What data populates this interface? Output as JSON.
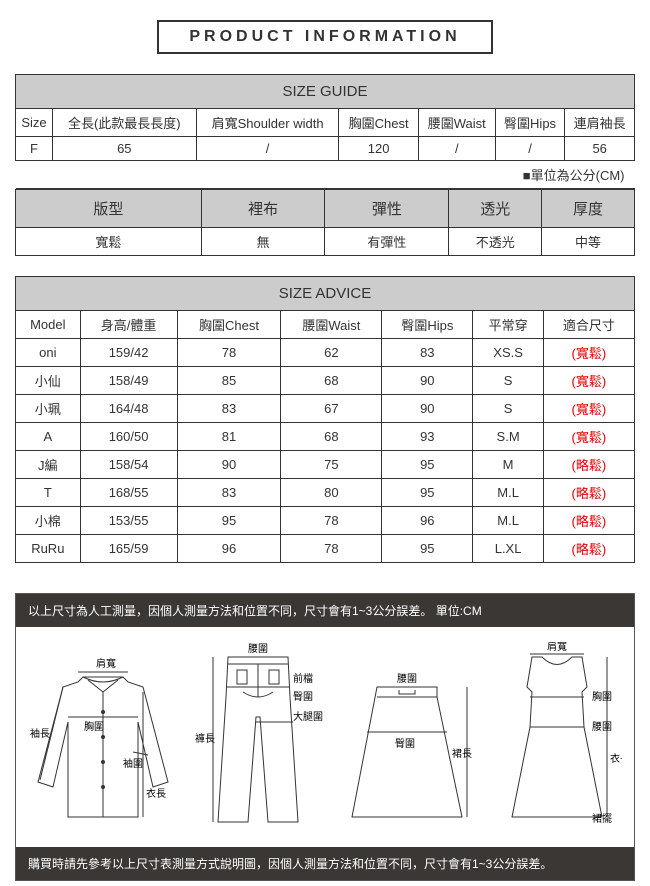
{
  "title": "PRODUCT INFORMATION",
  "size_guide": {
    "heading": "SIZE GUIDE",
    "headers": [
      "Size",
      "全長(此款最長長度)",
      "肩寬Shoulder width",
      "胸圍Chest",
      "腰圍Waist",
      "臀圍Hips",
      "連肩袖長"
    ],
    "row": [
      "F",
      "65",
      "/",
      "120",
      "/",
      "/",
      "56"
    ],
    "unit": "■單位為公分(CM)"
  },
  "fit": {
    "headers": [
      "版型",
      "裡布",
      "彈性",
      "透光",
      "厚度"
    ],
    "row": [
      "寬鬆",
      "無",
      "有彈性",
      "不透光",
      "中等"
    ]
  },
  "advice": {
    "heading": "SIZE ADVICE",
    "headers": [
      "Model",
      "身高/體重",
      "胸圍Chest",
      "腰圍Waist",
      "臀圍Hips",
      "平常穿",
      "適合尺寸"
    ],
    "rows": [
      {
        "c": [
          "oni",
          "159/42",
          "78",
          "62",
          "83",
          "XS.S"
        ],
        "fit": "(寬鬆)"
      },
      {
        "c": [
          "小仙",
          "158/49",
          "85",
          "68",
          "90",
          "S"
        ],
        "fit": "(寬鬆)"
      },
      {
        "c": [
          "小珮",
          "164/48",
          "83",
          "67",
          "90",
          "S"
        ],
        "fit": "(寬鬆)"
      },
      {
        "c": [
          "A",
          "160/50",
          "81",
          "68",
          "93",
          "S.M"
        ],
        "fit": "(寬鬆)"
      },
      {
        "c": [
          "J編",
          "158/54",
          "90",
          "75",
          "95",
          "M"
        ],
        "fit": "(略鬆)"
      },
      {
        "c": [
          "T",
          "168/55",
          "83",
          "80",
          "95",
          "M.L"
        ],
        "fit": "(略鬆)"
      },
      {
        "c": [
          "小棉",
          "153/55",
          "95",
          "78",
          "96",
          "M.L"
        ],
        "fit": "(略鬆)"
      },
      {
        "c": [
          "RuRu",
          "165/59",
          "96",
          "78",
          "95",
          "L.XL"
        ],
        "fit": "(略鬆)"
      }
    ]
  },
  "note_top": "以上尺寸為人工測量，因個人測量方法和位置不同，尺寸會有1~3公分誤差。 單位:CM",
  "note_bottom": "購買時請先參考以上尺寸表測量方式說明圖，因個人測量方法和位置不同，尺寸會有1~3公分誤差。",
  "diagram_labels": {
    "shoulder": "肩寬",
    "chest": "胸圍",
    "sleeve": "袖長",
    "cuff": "袖圍",
    "length": "衣長",
    "waist": "腰圍",
    "front_rise": "前檔",
    "hip": "臀圍",
    "thigh": "大腿圍",
    "pant_length": "褲長",
    "skirt_length": "裙長",
    "hem": "裙擺"
  },
  "colors": {
    "border": "#333333",
    "header_bg": "#cccccc",
    "bar_bg": "#3a3735",
    "red": "#dd0000"
  }
}
